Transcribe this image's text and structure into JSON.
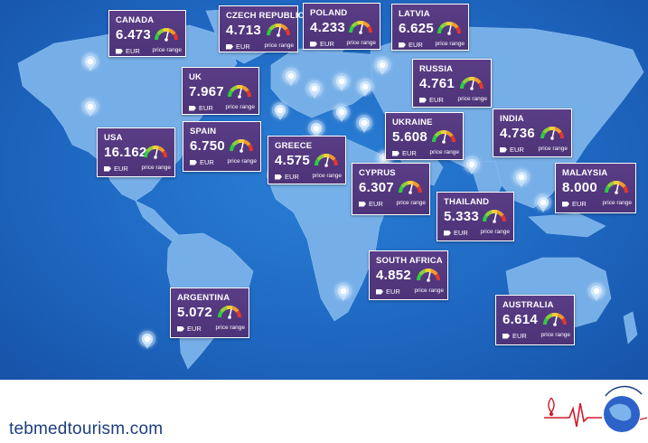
{
  "currency": "EUR",
  "range_label": "price range",
  "site": "tebmedtourism.com",
  "colors": {
    "card": "#4d3378",
    "ocean": "#1f68c2",
    "land": "#7bb3ea",
    "site_text": "#1d3e80"
  },
  "countries": [
    {
      "name": "CANADA",
      "price": "6.473"
    },
    {
      "name": "CZECH REPUBLIC",
      "price": "4.713"
    },
    {
      "name": "POLAND",
      "price": "4.233"
    },
    {
      "name": "LATVIA",
      "price": "6.625"
    },
    {
      "name": "UK",
      "price": "7.967"
    },
    {
      "name": "RUSSIA",
      "price": "4.761"
    },
    {
      "name": "USA",
      "price": "16.162"
    },
    {
      "name": "SPAIN",
      "price": "6.750"
    },
    {
      "name": "GREECE",
      "price": "4.575"
    },
    {
      "name": "UKRAINE",
      "price": "5.608"
    },
    {
      "name": "INDIA",
      "price": "4.736"
    },
    {
      "name": "CYPRUS",
      "price": "6.307"
    },
    {
      "name": "MALAYSIA",
      "price": "8.000"
    },
    {
      "name": "THAILAND",
      "price": "5.333"
    },
    {
      "name": "SOUTH AFRICA",
      "price": "4.852"
    },
    {
      "name": "ARGENTINA",
      "price": "5.072"
    },
    {
      "name": "AUSTRALIA",
      "price": "6.614"
    }
  ]
}
